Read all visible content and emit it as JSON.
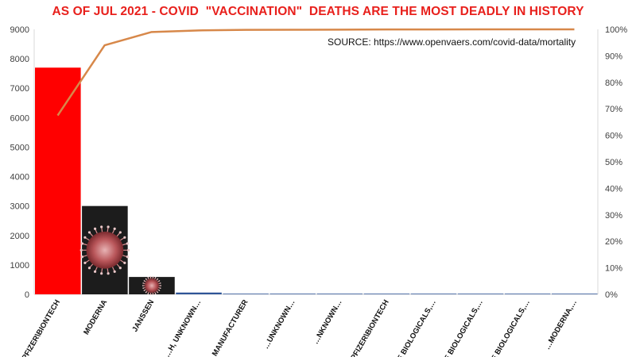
{
  "chart_data": {
    "type": "bar",
    "title": "AS OF JUL 2021 - COVID  \"VACCINATION\"  DEATHS ARE THE MOST DEADLY IN HISTORY",
    "annotation": "SOURCE: https://www.openvaers.com/covid-data/mortality",
    "categories": [
      "PFIZER\\BIONTECH",
      "MODERNA",
      "JANSSEN",
      "…H, UNKNOWN…",
      "…MANUFACTURER",
      "…UNKNOWN…",
      "…NKNOWN…",
      "…PFIZER\\BIONTECH",
      "…E BIOLOGICALS,…",
      "…E BIOLOGICALS,…",
      "…E BIOLOGICALS,…",
      "…MODERNA,…"
    ],
    "series": [
      {
        "values": [
          7700,
          3000,
          590,
          60,
          15,
          6,
          3,
          2,
          1,
          1,
          1,
          1
        ]
      },
      {
        "values": [
          0.675,
          0.94,
          0.99,
          0.996,
          0.998,
          0.9985,
          0.999,
          0.9995,
          0.9998,
          0.9999,
          1.0,
          1.0
        ]
      }
    ],
    "ylim": [
      0,
      9000
    ],
    "yticks": [
      "0",
      "1000",
      "2000",
      "3000",
      "4000",
      "5000",
      "6000",
      "7000",
      "8000",
      "9000"
    ],
    "y2lim": [
      0,
      1
    ],
    "y2ticks": [
      "0%",
      "10%",
      "20%",
      "30%",
      "40%",
      "50%",
      "60%",
      "70%",
      "80%",
      "90%",
      "100%"
    ],
    "grid": false,
    "colors": {
      "title": "#e8201c",
      "bar_primary": "#ff0000",
      "bar_other": "#2e5597",
      "image_bar_bg": "#1c1c1c",
      "virus": "#b9565a",
      "line": "#d7884a"
    }
  }
}
